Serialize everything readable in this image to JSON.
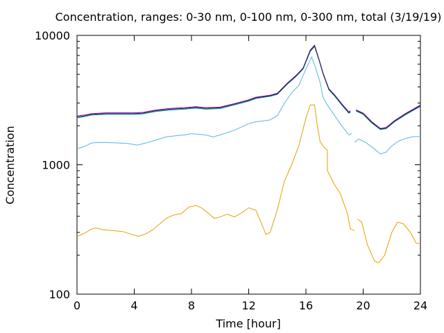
{
  "chart_data": {
    "type": "line",
    "title": "Concentration, ranges: 0-30 nm, 0-100 nm, 0-300 nm, total (3/19/19)",
    "xlabel": "Time [hour]",
    "ylabel": "Concentration",
    "xlim": [
      0,
      24
    ],
    "ylim": [
      100,
      10000
    ],
    "yscale": "log",
    "xticks": [
      0,
      4,
      8,
      12,
      16,
      20,
      24
    ],
    "yticks": [
      100,
      1000,
      10000
    ],
    "grid": false,
    "legend": "none",
    "series": [
      {
        "color": "#e69f00",
        "points": [
          [
            0,
            280
          ],
          [
            0.5,
            295
          ],
          [
            1,
            318
          ],
          [
            1.3,
            325
          ],
          [
            1.8,
            315
          ],
          [
            2.5,
            310
          ],
          [
            3.2,
            305
          ],
          [
            3.8,
            290
          ],
          [
            4.3,
            280
          ],
          [
            4.8,
            292
          ],
          [
            5.3,
            315
          ],
          [
            5.8,
            350
          ],
          [
            6.3,
            390
          ],
          [
            6.8,
            410
          ],
          [
            7.3,
            420
          ],
          [
            7.8,
            470
          ],
          [
            8.3,
            485
          ],
          [
            8.7,
            465
          ],
          [
            9.2,
            420
          ],
          [
            9.6,
            385
          ],
          [
            10.0,
            395
          ],
          [
            10.5,
            415
          ],
          [
            11.0,
            395
          ],
          [
            11.5,
            425
          ],
          [
            12.0,
            465
          ],
          [
            12.5,
            445
          ],
          [
            12.9,
            350
          ],
          [
            13.2,
            290
          ],
          [
            13.5,
            300
          ],
          [
            14.0,
            450
          ],
          [
            14.5,
            750
          ],
          [
            15.0,
            1000
          ],
          [
            15.5,
            1400
          ],
          [
            16.0,
            2300
          ],
          [
            16.3,
            2900
          ],
          [
            16.6,
            2900
          ],
          [
            16.8,
            2000
          ],
          [
            17.0,
            1500
          ],
          [
            17.3,
            1350
          ],
          [
            17.5,
            1300
          ],
          [
            17.5,
            900
          ],
          [
            18.0,
            700
          ],
          [
            18.4,
            600
          ],
          [
            18.9,
            420
          ],
          [
            19.1,
            320
          ],
          [
            19.4,
            310
          ],
          [
            null,
            null
          ],
          [
            19.6,
            380
          ],
          [
            19.9,
            360
          ],
          [
            20.3,
            240
          ],
          [
            20.8,
            180
          ],
          [
            21.1,
            175
          ],
          [
            21.5,
            200
          ],
          [
            22.0,
            300
          ],
          [
            22.4,
            360
          ],
          [
            22.8,
            350
          ],
          [
            23.3,
            300
          ],
          [
            23.7,
            248
          ],
          [
            24.0,
            245
          ]
        ]
      },
      {
        "color": "#56b4e9",
        "points": [
          [
            0,
            1330
          ],
          [
            0.5,
            1380
          ],
          [
            1,
            1470
          ],
          [
            1.5,
            1490
          ],
          [
            2.5,
            1480
          ],
          [
            3.5,
            1460
          ],
          [
            4.2,
            1420
          ],
          [
            4.8,
            1470
          ],
          [
            5.5,
            1550
          ],
          [
            6.2,
            1640
          ],
          [
            7.0,
            1680
          ],
          [
            7.5,
            1700
          ],
          [
            8.0,
            1740
          ],
          [
            8.5,
            1720
          ],
          [
            9.0,
            1700
          ],
          [
            9.5,
            1640
          ],
          [
            10.0,
            1700
          ],
          [
            11.0,
            1850
          ],
          [
            12.0,
            2080
          ],
          [
            12.5,
            2150
          ],
          [
            13.5,
            2220
          ],
          [
            14.0,
            2400
          ],
          [
            14.5,
            3000
          ],
          [
            15.0,
            3600
          ],
          [
            15.5,
            4100
          ],
          [
            16.0,
            5500
          ],
          [
            16.4,
            6800
          ],
          [
            16.7,
            5500
          ],
          [
            17.0,
            4300
          ],
          [
            17.2,
            3300
          ],
          [
            17.5,
            2900
          ],
          [
            18.0,
            2400
          ],
          [
            18.5,
            2000
          ],
          [
            19.0,
            1700
          ],
          [
            19.2,
            1750
          ],
          [
            null,
            null
          ],
          [
            19.4,
            1500
          ],
          [
            19.7,
            1580
          ],
          [
            20.2,
            1480
          ],
          [
            20.7,
            1350
          ],
          [
            21.2,
            1210
          ],
          [
            21.6,
            1250
          ],
          [
            22.0,
            1400
          ],
          [
            22.5,
            1530
          ],
          [
            23.0,
            1600
          ],
          [
            23.5,
            1650
          ],
          [
            24.0,
            1650
          ]
        ]
      },
      {
        "color": "#009e73",
        "points": [
          [
            0,
            2300
          ],
          [
            0.5,
            2350
          ],
          [
            1,
            2420
          ],
          [
            2,
            2450
          ],
          [
            3,
            2450
          ],
          [
            4,
            2450
          ],
          [
            4.6,
            2470
          ],
          [
            5.5,
            2580
          ],
          [
            6.5,
            2650
          ],
          [
            7.5,
            2690
          ],
          [
            8.3,
            2740
          ],
          [
            9,
            2690
          ],
          [
            10,
            2720
          ],
          [
            11,
            2900
          ],
          [
            12,
            3100
          ],
          [
            12.5,
            3250
          ],
          [
            13.5,
            3380
          ],
          [
            14.0,
            3500
          ],
          [
            14.7,
            4200
          ],
          [
            15.3,
            4800
          ],
          [
            15.8,
            5500
          ],
          [
            16.3,
            7500
          ],
          [
            16.6,
            8200
          ],
          [
            16.9,
            6500
          ],
          [
            17.2,
            5000
          ],
          [
            17.6,
            3800
          ],
          [
            18.0,
            3400
          ],
          [
            18.5,
            2900
          ],
          [
            19.0,
            2500
          ],
          [
            19.1,
            2550
          ],
          [
            null,
            null
          ],
          [
            19.5,
            2600
          ],
          [
            20.0,
            2450
          ],
          [
            20.6,
            2100
          ],
          [
            21.2,
            1870
          ],
          [
            21.6,
            1900
          ],
          [
            22.2,
            2150
          ],
          [
            23.0,
            2450
          ],
          [
            24.0,
            2820
          ]
        ]
      },
      {
        "color": "#9400d3",
        "points": [
          [
            0,
            2380
          ],
          [
            0.5,
            2420
          ],
          [
            1,
            2480
          ],
          [
            2,
            2520
          ],
          [
            3,
            2520
          ],
          [
            4,
            2520
          ],
          [
            4.6,
            2540
          ],
          [
            5.5,
            2650
          ],
          [
            6.5,
            2730
          ],
          [
            7.5,
            2760
          ],
          [
            8.3,
            2810
          ],
          [
            9,
            2760
          ],
          [
            10,
            2790
          ],
          [
            11,
            2970
          ],
          [
            12,
            3180
          ],
          [
            12.5,
            3330
          ],
          [
            13.5,
            3450
          ],
          [
            14.0,
            3570
          ],
          [
            14.7,
            4280
          ],
          [
            15.3,
            4900
          ],
          [
            15.8,
            5600
          ],
          [
            16.3,
            7700
          ],
          [
            16.6,
            8400
          ],
          [
            16.9,
            6600
          ],
          [
            17.2,
            5100
          ],
          [
            17.6,
            3880
          ],
          [
            18.0,
            3470
          ],
          [
            18.5,
            2960
          ],
          [
            19.0,
            2560
          ],
          [
            19.1,
            2610
          ],
          [
            null,
            null
          ],
          [
            19.5,
            2660
          ],
          [
            20.0,
            2510
          ],
          [
            20.6,
            2150
          ],
          [
            21.2,
            1910
          ],
          [
            21.6,
            1940
          ],
          [
            22.2,
            2200
          ],
          [
            23.0,
            2510
          ],
          [
            24.0,
            2900
          ]
        ]
      },
      {
        "color": "#222255",
        "points": [
          [
            0,
            2340
          ],
          [
            0.5,
            2385
          ],
          [
            1,
            2450
          ],
          [
            2,
            2485
          ],
          [
            3,
            2485
          ],
          [
            4,
            2485
          ],
          [
            4.6,
            2505
          ],
          [
            5.5,
            2615
          ],
          [
            6.5,
            2690
          ],
          [
            7.5,
            2725
          ],
          [
            8.3,
            2775
          ],
          [
            9,
            2725
          ],
          [
            10,
            2755
          ],
          [
            11,
            2935
          ],
          [
            12,
            3140
          ],
          [
            12.5,
            3290
          ],
          [
            13.5,
            3415
          ],
          [
            14.0,
            3535
          ],
          [
            14.7,
            4240
          ],
          [
            15.3,
            4850
          ],
          [
            15.8,
            5550
          ],
          [
            16.3,
            7600
          ],
          [
            16.6,
            8300
          ],
          [
            16.9,
            6550
          ],
          [
            17.2,
            5050
          ],
          [
            17.6,
            3840
          ],
          [
            18.0,
            3435
          ],
          [
            18.5,
            2930
          ],
          [
            19.0,
            2530
          ],
          [
            19.1,
            2580
          ],
          [
            null,
            null
          ],
          [
            19.5,
            2630
          ],
          [
            20.0,
            2480
          ],
          [
            20.6,
            2125
          ],
          [
            21.2,
            1890
          ],
          [
            21.6,
            1920
          ],
          [
            22.2,
            2175
          ],
          [
            23.0,
            2480
          ],
          [
            24.0,
            2860
          ]
        ]
      }
    ]
  }
}
